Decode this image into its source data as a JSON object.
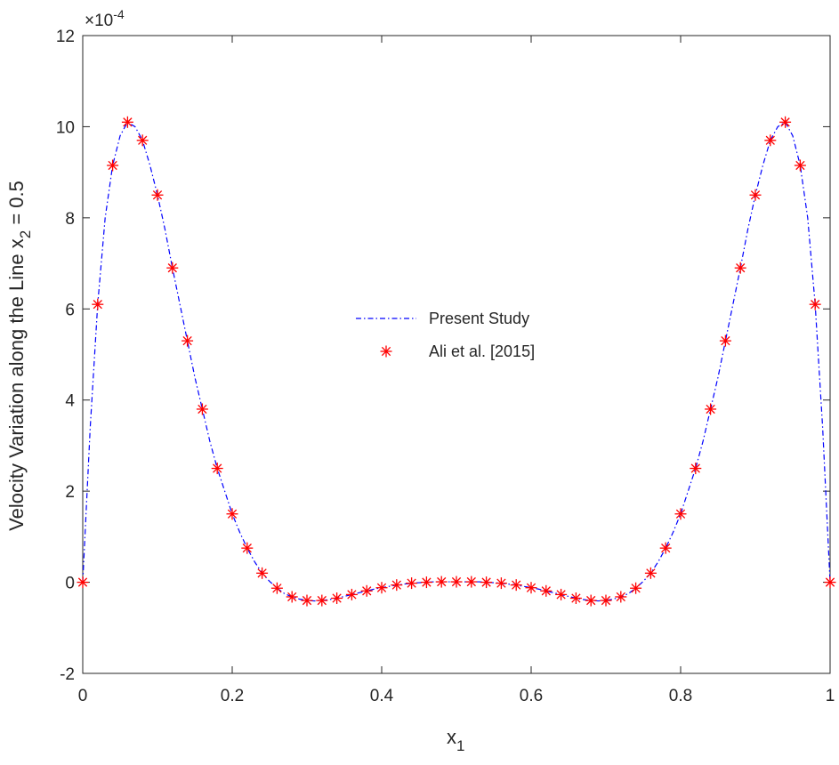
{
  "chart_data": {
    "type": "line",
    "xlabel": {
      "base": "x",
      "sub": "1"
    },
    "ylabel": {
      "prefix": "Velocity Variation along the Line x",
      "sub": "2",
      "suffix": " = 0.5"
    },
    "exponent_label": {
      "base": "×10",
      "sup": "-4"
    },
    "xlim": [
      0,
      1
    ],
    "ylim": [
      -2,
      12
    ],
    "x_ticks": [
      "0",
      "0.2",
      "0.4",
      "0.6",
      "0.8",
      "1"
    ],
    "y_ticks": [
      "-2",
      "0",
      "2",
      "4",
      "6",
      "8",
      "10",
      "12"
    ],
    "grid": false,
    "legend_position": "center",
    "series": [
      {
        "name": "Present Study",
        "style": "dash-dot line",
        "color": "#0000ff",
        "x": [
          0,
          0.01,
          0.02,
          0.03,
          0.04,
          0.05,
          0.06,
          0.07,
          0.08,
          0.09,
          0.1,
          0.11,
          0.12,
          0.13,
          0.14,
          0.15,
          0.16,
          0.17,
          0.18,
          0.19,
          0.2,
          0.21,
          0.22,
          0.23,
          0.24,
          0.25,
          0.26,
          0.27,
          0.28,
          0.29,
          0.3,
          0.31,
          0.32,
          0.33,
          0.34,
          0.35,
          0.36,
          0.37,
          0.38,
          0.39,
          0.4,
          0.41,
          0.42,
          0.43,
          0.44,
          0.45,
          0.46,
          0.47,
          0.48,
          0.49,
          0.5,
          0.51,
          0.52,
          0.53,
          0.54,
          0.55,
          0.56,
          0.57,
          0.58,
          0.59,
          0.6,
          0.61,
          0.62,
          0.63,
          0.64,
          0.65,
          0.66,
          0.67,
          0.68,
          0.69,
          0.7,
          0.71,
          0.72,
          0.73,
          0.74,
          0.75,
          0.76,
          0.77,
          0.78,
          0.79,
          0.8,
          0.81,
          0.82,
          0.83,
          0.84,
          0.85,
          0.86,
          0.87,
          0.88,
          0.89,
          0.9,
          0.91,
          0.92,
          0.93,
          0.94,
          0.95,
          0.96,
          0.97,
          0.98,
          0.99,
          1
        ],
        "y": [
          0,
          3.4,
          6.1,
          8.0,
          9.15,
          9.8,
          10.1,
          10.0,
          9.7,
          9.15,
          8.5,
          7.75,
          6.9,
          6.1,
          5.3,
          4.5,
          3.8,
          3.1,
          2.5,
          2.0,
          1.5,
          1.1,
          0.75,
          0.45,
          0.2,
          0.02,
          -0.13,
          -0.25,
          -0.32,
          -0.37,
          -0.4,
          -0.41,
          -0.4,
          -0.38,
          -0.35,
          -0.31,
          -0.27,
          -0.23,
          -0.19,
          -0.15,
          -0.12,
          -0.09,
          -0.06,
          -0.04,
          -0.02,
          -0.01,
          0.0,
          0.01,
          0.01,
          0.01,
          0.01,
          0.01,
          0.01,
          0.01,
          0.0,
          -0.01,
          -0.02,
          -0.04,
          -0.06,
          -0.09,
          -0.12,
          -0.15,
          -0.19,
          -0.23,
          -0.27,
          -0.31,
          -0.35,
          -0.38,
          -0.4,
          -0.41,
          -0.4,
          -0.37,
          -0.32,
          -0.25,
          -0.13,
          0.02,
          0.2,
          0.45,
          0.75,
          1.1,
          1.5,
          2.0,
          2.5,
          3.1,
          3.8,
          4.5,
          5.3,
          6.1,
          6.9,
          7.75,
          8.5,
          9.15,
          9.7,
          10.0,
          10.1,
          9.8,
          9.15,
          8.0,
          6.1,
          3.4,
          0
        ]
      },
      {
        "name": "Ali et al. [2015]",
        "style": "asterisk markers",
        "color": "#ff0000",
        "x": [
          0,
          0.02,
          0.04,
          0.06,
          0.08,
          0.1,
          0.12,
          0.14,
          0.16,
          0.18,
          0.2,
          0.22,
          0.24,
          0.26,
          0.28,
          0.3,
          0.32,
          0.34,
          0.36,
          0.38,
          0.4,
          0.42,
          0.44,
          0.46,
          0.48,
          0.5,
          0.52,
          0.54,
          0.56,
          0.58,
          0.6,
          0.62,
          0.64,
          0.66,
          0.68,
          0.7,
          0.72,
          0.74,
          0.76,
          0.78,
          0.8,
          0.82,
          0.84,
          0.86,
          0.88,
          0.9,
          0.92,
          0.94,
          0.96,
          0.98,
          1
        ],
        "y": [
          0,
          6.1,
          9.15,
          10.1,
          9.7,
          8.5,
          6.9,
          5.3,
          3.8,
          2.5,
          1.5,
          0.75,
          0.2,
          -0.13,
          -0.32,
          -0.4,
          -0.4,
          -0.35,
          -0.27,
          -0.19,
          -0.12,
          -0.06,
          -0.02,
          0.0,
          0.01,
          0.01,
          0.01,
          0.0,
          -0.02,
          -0.06,
          -0.12,
          -0.19,
          -0.27,
          -0.35,
          -0.4,
          -0.4,
          -0.32,
          -0.13,
          0.2,
          0.75,
          1.5,
          2.5,
          3.8,
          5.3,
          6.9,
          8.5,
          9.7,
          10.1,
          9.15,
          6.1,
          0
        ]
      }
    ]
  }
}
